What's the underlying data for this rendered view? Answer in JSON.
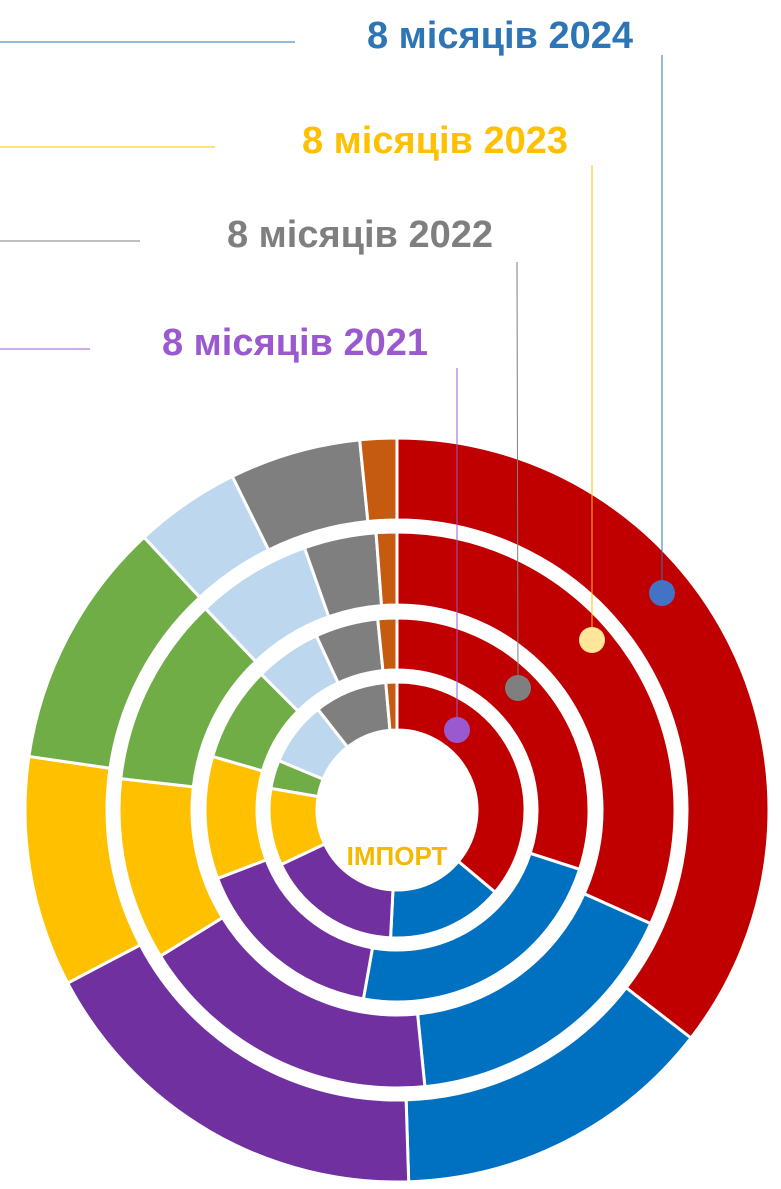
{
  "chart_data": {
    "type": "donut",
    "center_label": "ІМПОРТ",
    "categories": [
      null,
      null,
      null,
      null,
      null,
      null,
      null,
      null
    ],
    "colors": [
      "#c00000",
      "#0070c0",
      "#7030a0",
      "#ffc000",
      "#70ad47",
      "#bdd7ee",
      "#7f7f7f",
      "#c55a11"
    ],
    "series": [
      {
        "name": "8 місяців 2024",
        "color": "#2e75b6",
        "marker_color": "#4472c4",
        "values": [
          35.5,
          14,
          17.8,
          10,
          10.8,
          4.6,
          5.7,
          1.6
        ]
      },
      {
        "name": "8 місяців 2023",
        "color": "#ffc000",
        "marker_color": "#ffe699",
        "values": [
          31.7,
          16.7,
          17.8,
          10.6,
          11.1,
          6.7,
          4.2,
          1.2
        ]
      },
      {
        "name": "8 місяців 2022",
        "color": "#7f7f7f",
        "marker_color": "#7f7f7f",
        "values": [
          30,
          22.8,
          16.4,
          10.3,
          8,
          5.6,
          5.3,
          1.6
        ]
      },
      {
        "name": "8 місяців 2021",
        "color": "#9b59d0",
        "marker_color": "#9b59d0",
        "values": [
          36.1,
          14.7,
          17.2,
          9.7,
          3.6,
          8.1,
          9.2,
          1.4
        ]
      }
    ]
  }
}
